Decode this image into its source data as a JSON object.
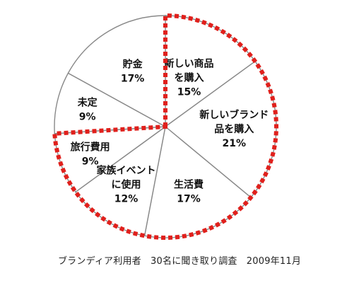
{
  "chart_data": {
    "type": "pie",
    "slices": [
      {
        "label_lines": [
          "新しい商品",
          "を購入"
        ],
        "value_label": "15%",
        "value": 15,
        "highlighted": true
      },
      {
        "label_lines": [
          "新しいブランド",
          "品を購入"
        ],
        "value_label": "21%",
        "value": 21,
        "highlighted": true
      },
      {
        "label_lines": [
          "生活費"
        ],
        "value_label": "17%",
        "value": 17,
        "highlighted": true
      },
      {
        "label_lines": [
          "家族イベント",
          "に使用"
        ],
        "value_label": "12%",
        "value": 12,
        "highlighted": true
      },
      {
        "label_lines": [
          "旅行費用"
        ],
        "value_label": "9%",
        "value": 9,
        "highlighted": true
      },
      {
        "label_lines": [
          "未定"
        ],
        "value_label": "9%",
        "value": 9,
        "highlighted": false
      },
      {
        "label_lines": [
          "貯金"
        ],
        "value_label": "17%",
        "value": 17,
        "highlighted": false
      }
    ],
    "start": "12 o'clock",
    "direction": "clockwise",
    "slice_fill": "#ffffff",
    "slice_stroke": "#888888",
    "highlight_color": "#e0201c",
    "highlight_style": "dotted"
  },
  "caption": "ブランディア利用者　30名に聞き取り調査　2009年11月"
}
